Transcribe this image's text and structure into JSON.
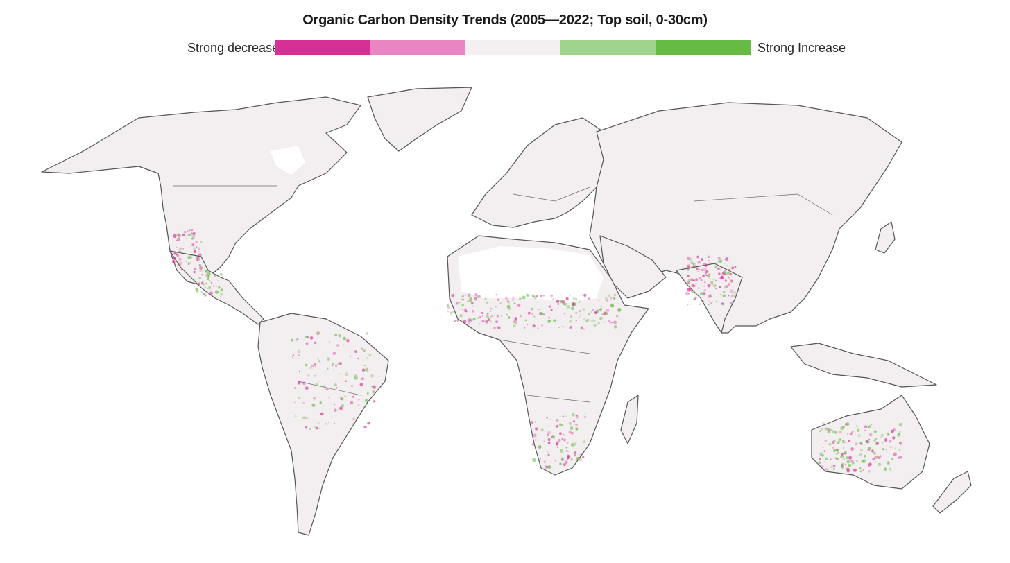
{
  "title": "Organic Carbon Density Trends (2005—2022; Top soil, 0-30cm)",
  "legend": {
    "left_label": "Strong decrease",
    "right_label": "Strong Increase",
    "colors": [
      "#d62f96",
      "#ea85c3",
      "#f4f0f1",
      "#a0d48c",
      "#66bb45"
    ]
  },
  "map": {
    "land_color": "#f3eeef",
    "coast_color": "#555555",
    "decrease_color": "#d62f96",
    "increase_color": "#66bb45"
  }
}
